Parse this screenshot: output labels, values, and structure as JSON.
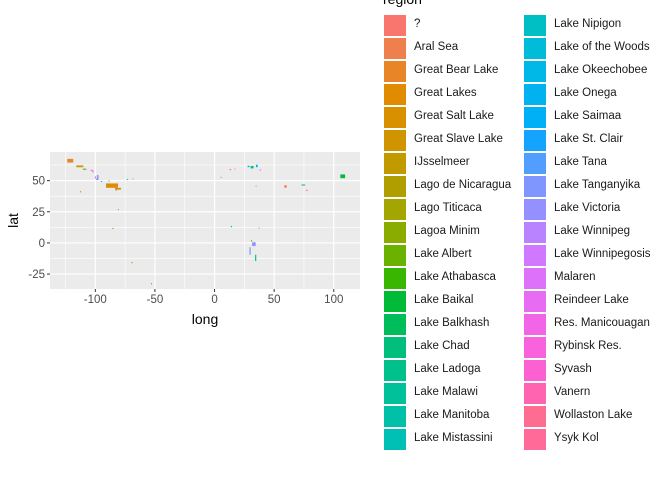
{
  "chart_data": {
    "type": "map",
    "xlabel": "long",
    "ylabel": "lat",
    "xlim": [
      -138,
      122
    ],
    "ylim": [
      -37,
      73
    ],
    "x_ticks": [
      -100,
      -50,
      0,
      50,
      100
    ],
    "y_ticks": [
      -25,
      0,
      25,
      50
    ],
    "x_tick_labels": [
      "-100",
      "-50",
      "0",
      "50",
      "100"
    ],
    "y_tick_labels": [
      "-25",
      "0",
      "25",
      "50"
    ],
    "grid": true,
    "legend": {
      "title": "region",
      "position": "right",
      "entries": [
        {
          "label": "?",
          "color": "#F8766D"
        },
        {
          "label": "Aral Sea",
          "color": "#F07F4E"
        },
        {
          "label": "Great Bear Lake",
          "color": "#E88526"
        },
        {
          "label": "Great Lakes",
          "color": "#E08B00"
        },
        {
          "label": "Great Salt Lake",
          "color": "#D89000"
        },
        {
          "label": "Great Slave Lake",
          "color": "#CF9400"
        },
        {
          "label": "IJsselmeer",
          "color": "#C19A00"
        },
        {
          "label": "Lago de Nicaragua",
          "color": "#B09E00"
        },
        {
          "label": "Lago Titicaca",
          "color": "#A3A500"
        },
        {
          "label": "Lagoa Minim",
          "color": "#8AAB00"
        },
        {
          "label": "Lake Albert",
          "color": "#6BB100"
        },
        {
          "label": "Lake Athabasca",
          "color": "#39B600"
        },
        {
          "label": "Lake Baikal",
          "color": "#00BA38"
        },
        {
          "label": "Lake Balkhash",
          "color": "#00BD5C"
        },
        {
          "label": "Lake Chad",
          "color": "#00BF7D"
        },
        {
          "label": "Lake Ladoga",
          "color": "#00C08B"
        },
        {
          "label": "Lake Malawi",
          "color": "#00C19A"
        },
        {
          "label": "Lake Manitoba",
          "color": "#00C0A7"
        },
        {
          "label": "Lake Mistassini",
          "color": "#00BFB4"
        },
        {
          "label": "Lake Nipigon",
          "color": "#00BFC4"
        },
        {
          "label": "Lake of the Woods",
          "color": "#00BCD8"
        },
        {
          "label": "Lake Okeechobee",
          "color": "#00B8E7"
        },
        {
          "label": "Lake Onega",
          "color": "#00B3F0"
        },
        {
          "label": "Lake Saimaa",
          "color": "#00B0F6"
        },
        {
          "label": "Lake St. Clair",
          "color": "#14A3FF"
        },
        {
          "label": "Lake Tana",
          "color": "#529EFF"
        },
        {
          "label": "Lake Tanganyika",
          "color": "#7F96FF"
        },
        {
          "label": "Lake Victoria",
          "color": "#9590FF"
        },
        {
          "label": "Lake Winnipeg",
          "color": "#B983FF"
        },
        {
          "label": "Lake Winnipegosis",
          "color": "#D078FF"
        },
        {
          "label": "Malaren",
          "color": "#DE71F9"
        },
        {
          "label": "Reindeer Lake",
          "color": "#E76BF3"
        },
        {
          "label": "Res. Manicouagan",
          "color": "#F265E7"
        },
        {
          "label": "Rybinsk Res.",
          "color": "#F962DD"
        },
        {
          "label": "Syvash",
          "color": "#FD61D1"
        },
        {
          "label": "Vanern",
          "color": "#FF64B0"
        },
        {
          "label": "Wollaston Lake",
          "color": "#FF6C91"
        },
        {
          "label": "Ysyk Kol",
          "color": "#FF6A98"
        }
      ]
    },
    "lakes": [
      {
        "region": "Great Bear Lake",
        "long": -121,
        "lat": 66,
        "w": 5,
        "h": 3
      },
      {
        "region": "Great Slave Lake",
        "long": -113,
        "lat": 61.5,
        "w": 6,
        "h": 1.5
      },
      {
        "region": "Lake Athabasca",
        "long": -109,
        "lat": 59.3,
        "w": 3,
        "h": 0.6
      },
      {
        "region": "Reindeer Lake",
        "long": -102,
        "lat": 57.5,
        "w": 1,
        "h": 2
      },
      {
        "region": "Wollaston Lake",
        "long": -103.3,
        "lat": 58.3,
        "w": 1,
        "h": 1
      },
      {
        "region": "Lake Winnipeg",
        "long": -98,
        "lat": 52.5,
        "w": 1.5,
        "h": 4
      },
      {
        "region": "Lake Winnipegosis",
        "long": -100,
        "lat": 52.5,
        "w": 0.7,
        "h": 2
      },
      {
        "region": "Lake Manitoba",
        "long": -98.8,
        "lat": 51,
        "w": 0.6,
        "h": 1.2
      },
      {
        "region": "Lake of the Woods",
        "long": -94.8,
        "lat": 49.3,
        "w": 1,
        "h": 0.8
      },
      {
        "region": "Lake Nipigon",
        "long": -88.5,
        "lat": 49.8,
        "w": 0.8,
        "h": 1
      },
      {
        "region": "Great Lakes",
        "long": -86,
        "lat": 46,
        "w": 10,
        "h": 3.5
      },
      {
        "region": "Great Lakes",
        "long": -81,
        "lat": 43.5,
        "w": 5,
        "h": 1.5
      },
      {
        "region": "Lake St. Clair",
        "long": -82.7,
        "lat": 42.4,
        "w": 0.5,
        "h": 0.5
      },
      {
        "region": "Lake Mistassini",
        "long": -73,
        "lat": 51,
        "w": 1,
        "h": 0.8
      },
      {
        "region": "Res. Manicouagan",
        "long": -68.6,
        "lat": 51.4,
        "w": 0.6,
        "h": 0.8
      },
      {
        "region": "Great Salt Lake",
        "long": -112.4,
        "lat": 41.1,
        "w": 1,
        "h": 1
      },
      {
        "region": "Lake Okeechobee",
        "long": -80.8,
        "lat": 26.9,
        "w": 0.5,
        "h": 0.5
      },
      {
        "region": "Lago de Nicaragua",
        "long": -85.3,
        "lat": 11.6,
        "w": 1,
        "h": 0.8
      },
      {
        "region": "Lago Titicaca",
        "long": -69.3,
        "lat": -15.8,
        "w": 1,
        "h": 1
      },
      {
        "region": "Lagoa Minim",
        "long": -53,
        "lat": -32.8,
        "w": 0.6,
        "h": 1
      },
      {
        "region": "IJsselmeer",
        "long": 5.4,
        "lat": 52.7,
        "w": 0.6,
        "h": 0.6
      },
      {
        "region": "Vanern",
        "long": 13.3,
        "lat": 58.9,
        "w": 1.2,
        "h": 1
      },
      {
        "region": "Malaren",
        "long": 17,
        "lat": 59.5,
        "w": 0.8,
        "h": 0.4
      },
      {
        "region": "Lake Saimaa",
        "long": 28.5,
        "lat": 61.4,
        "w": 1.5,
        "h": 1.2
      },
      {
        "region": "Lake Ladoga",
        "long": 31.5,
        "lat": 60.8,
        "w": 2.5,
        "h": 2
      },
      {
        "region": "Lake Onega",
        "long": 35.5,
        "lat": 61.8,
        "w": 1.5,
        "h": 2
      },
      {
        "region": "Rybinsk Res.",
        "long": 38.4,
        "lat": 58.5,
        "w": 1,
        "h": 1
      },
      {
        "region": "Syvash",
        "long": 34.8,
        "lat": 45.8,
        "w": 0.8,
        "h": 0.5
      },
      {
        "region": "Aral Sea",
        "long": 59.5,
        "lat": 45.3,
        "w": 2,
        "h": 2
      },
      {
        "region": "Lake Balkhash",
        "long": 74.5,
        "lat": 46.5,
        "w": 3,
        "h": 0.8
      },
      {
        "region": "Ysyk Kol",
        "long": 77.3,
        "lat": 42.4,
        "w": 1.5,
        "h": 0.4
      },
      {
        "region": "Lake Baikal",
        "long": 107.5,
        "lat": 53.5,
        "w": 4,
        "h": 3
      },
      {
        "region": "Lake Chad",
        "long": 14.2,
        "lat": 13.1,
        "w": 1,
        "h": 1
      },
      {
        "region": "Lake Tana",
        "long": 37.3,
        "lat": 12,
        "w": 0.6,
        "h": 0.8
      },
      {
        "region": "Lake Albert",
        "long": 30.9,
        "lat": 1.7,
        "w": 0.5,
        "h": 1.2
      },
      {
        "region": "Lake Victoria",
        "long": 33,
        "lat": -1,
        "w": 3,
        "h": 3
      },
      {
        "region": "Lake Tanganyika",
        "long": 29.8,
        "lat": -6.5,
        "w": 1,
        "h": 6
      },
      {
        "region": "Lake Malawi",
        "long": 34.5,
        "lat": -12,
        "w": 1,
        "h": 5
      }
    ]
  }
}
